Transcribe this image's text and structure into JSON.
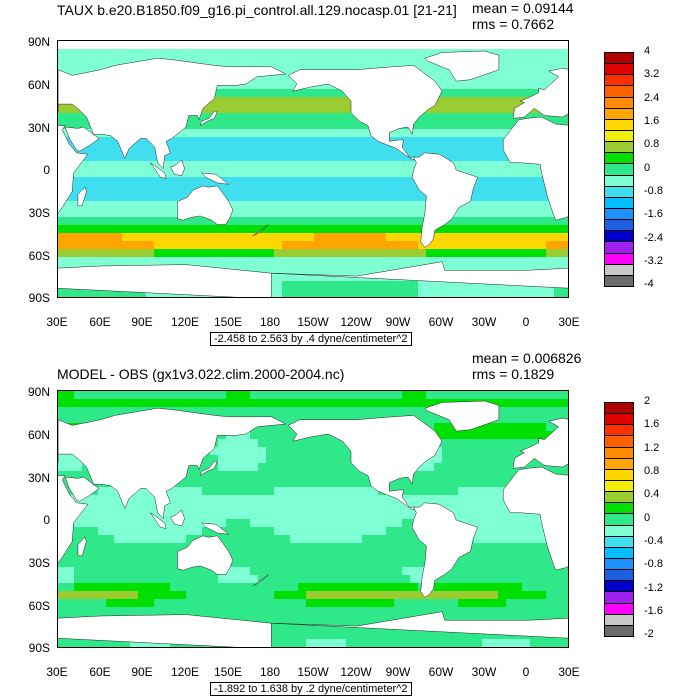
{
  "panels": [
    {
      "title": "TAUX b.e20.B1850.f09_g16.pi_control.all.129.nocasp.01 [21-21]",
      "mean_text": "mean = 0.09144",
      "rms_text": "rms = 0.7662",
      "subtitle": "-2.458 to 2.563 by .4 dyne/centimeter^2",
      "colorbar_labels": [
        "4",
        "3.2",
        "2.4",
        "1.6",
        "0.8",
        "0",
        "-0.8",
        "-1.6",
        "-2.4",
        "-3.2",
        "-4"
      ],
      "levels": [
        -4,
        -3.6,
        -3.2,
        -2.8,
        -2.4,
        -2.0,
        -1.6,
        -1.2,
        -0.8,
        -0.4,
        0,
        0.4,
        0.8,
        1.2,
        1.6,
        2.0,
        2.4,
        2.8,
        3.2,
        3.6,
        4
      ]
    },
    {
      "title": "MODEL - OBS (gx1v3.022.clim.2000-2004.nc)",
      "mean_text": "mean = 0.006826",
      "rms_text": "rms = 0.1829",
      "subtitle": "-1.892 to 1.638 by .2 dyne/centimeter^2",
      "colorbar_labels": [
        "2",
        "1.6",
        "1.2",
        "0.8",
        "0.4",
        "0",
        "-0.4",
        "-0.8",
        "-1.2",
        "-1.6",
        "-2"
      ],
      "levels": [
        -2,
        -1.8,
        -1.6,
        -1.4,
        -1.2,
        -1.0,
        -0.8,
        -0.6,
        -0.4,
        -0.2,
        0,
        0.2,
        0.4,
        0.6,
        0.8,
        1.0,
        1.2,
        1.4,
        1.6,
        1.8,
        2
      ]
    }
  ],
  "chart_data": {
    "type": "heatmap",
    "x_tick_labels": [
      "30E",
      "60E",
      "90E",
      "120E",
      "150E",
      "180",
      "150W",
      "120W",
      "90W",
      "60W",
      "30W",
      "0",
      "30E"
    ],
    "y_tick_labels": [
      "90N",
      "60N",
      "30N",
      "0",
      "30S",
      "60S",
      "90S"
    ],
    "xlim": [
      "30E",
      "30E"
    ],
    "ylim": [
      "90S",
      "90N"
    ],
    "colormap": [
      "#6b6b6b",
      "#c8c8c8",
      "#ff00ff",
      "#a020f0",
      "#0000cd",
      "#1e5fe0",
      "#1e90ff",
      "#00bfff",
      "#40dff0",
      "#7fffd4",
      "#2ee88a",
      "#00e000",
      "#9acd32",
      "#f0f000",
      "#ffd700",
      "#ffa500",
      "#ff8c00",
      "#ff6000",
      "#ff3000",
      "#e00000",
      "#b00000"
    ]
  }
}
